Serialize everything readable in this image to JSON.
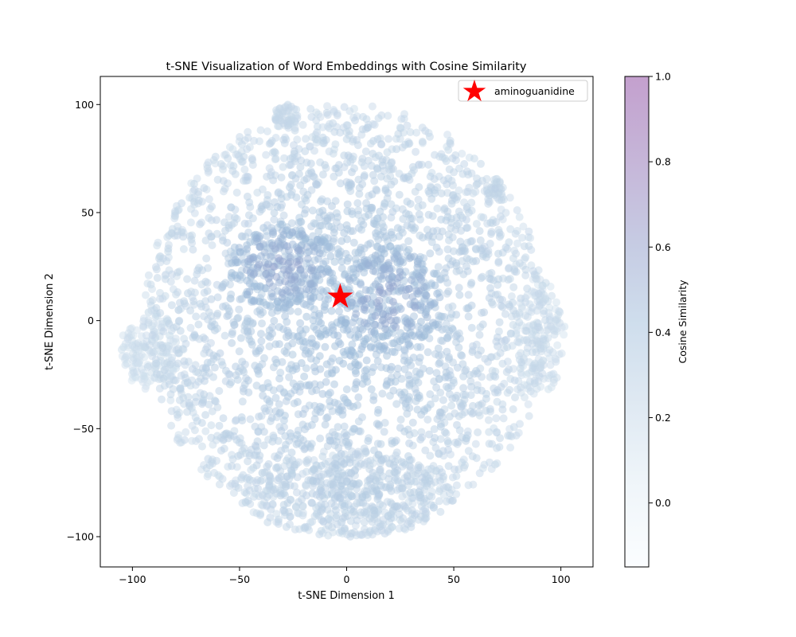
{
  "chart_data": {
    "type": "scatter",
    "title": "t-SNE Visualization of Word Embeddings with Cosine Similarity",
    "xlabel": "t-SNE Dimension 1",
    "ylabel": "t-SNE Dimension 2",
    "xlim": [
      -115,
      115
    ],
    "ylim": [
      -114,
      113
    ],
    "x_ticks": [
      -100,
      -50,
      0,
      50,
      100
    ],
    "y_ticks": [
      -100,
      -50,
      0,
      50,
      100
    ],
    "x_tick_labels": [
      "−100",
      "−50",
      "0",
      "50",
      "100"
    ],
    "y_tick_labels": [
      "−100",
      "−50",
      "0",
      "50",
      "100"
    ],
    "grid": false,
    "legend": {
      "position": "top-right",
      "entries": [
        {
          "label": "aminoguanidine",
          "marker": "star",
          "color": "#ff0000"
        }
      ]
    },
    "highlight": {
      "label": "aminoguanidine",
      "x": -3,
      "y": 11,
      "color": "#ff0000"
    },
    "colorbar": {
      "label": "Cosine Similarity",
      "range": [
        -0.15,
        1.0
      ],
      "ticks": [
        0.0,
        0.2,
        0.4,
        0.6,
        0.8,
        1.0
      ],
      "tick_labels": [
        "0.0",
        "0.2",
        "0.4",
        "0.6",
        "0.8",
        "1.0"
      ],
      "colors": [
        "#f7fbff",
        "#e0ecf4",
        "#bfd3e6",
        "#9ebcda",
        "#8c96c6",
        "#8c6bb1",
        "#88419d"
      ],
      "alpha": 0.5
    },
    "point_alpha": 0.5,
    "clusters": [
      {
        "cx": 0,
        "cy": 0,
        "rx": 95,
        "ry": 100,
        "n": 2600,
        "sim_center": 0.42,
        "sim_edge": 0.18
      },
      {
        "cx": -92,
        "cy": -14,
        "rx": 14,
        "ry": 18,
        "n": 160,
        "sim_center": 0.16,
        "sim_edge": 0.12
      },
      {
        "cx": 90,
        "cy": -8,
        "rx": 12,
        "ry": 28,
        "n": 150,
        "sim_center": 0.18,
        "sim_edge": 0.14
      },
      {
        "cx": -28,
        "cy": 95,
        "rx": 6,
        "ry": 5,
        "n": 45,
        "sim_center": 0.2,
        "sim_edge": 0.18
      },
      {
        "cx": 69,
        "cy": 61,
        "rx": 4,
        "ry": 5,
        "n": 25,
        "sim_center": 0.22,
        "sim_edge": 0.2
      },
      {
        "cx": 0,
        "cy": -80,
        "rx": 50,
        "ry": 20,
        "n": 350,
        "sim_center": 0.28,
        "sim_edge": 0.2
      },
      {
        "cx": -30,
        "cy": 25,
        "rx": 25,
        "ry": 20,
        "n": 220,
        "sim_center": 0.55,
        "sim_edge": 0.4
      },
      {
        "cx": 20,
        "cy": 10,
        "rx": 25,
        "ry": 25,
        "n": 220,
        "sim_center": 0.55,
        "sim_edge": 0.4
      }
    ]
  }
}
